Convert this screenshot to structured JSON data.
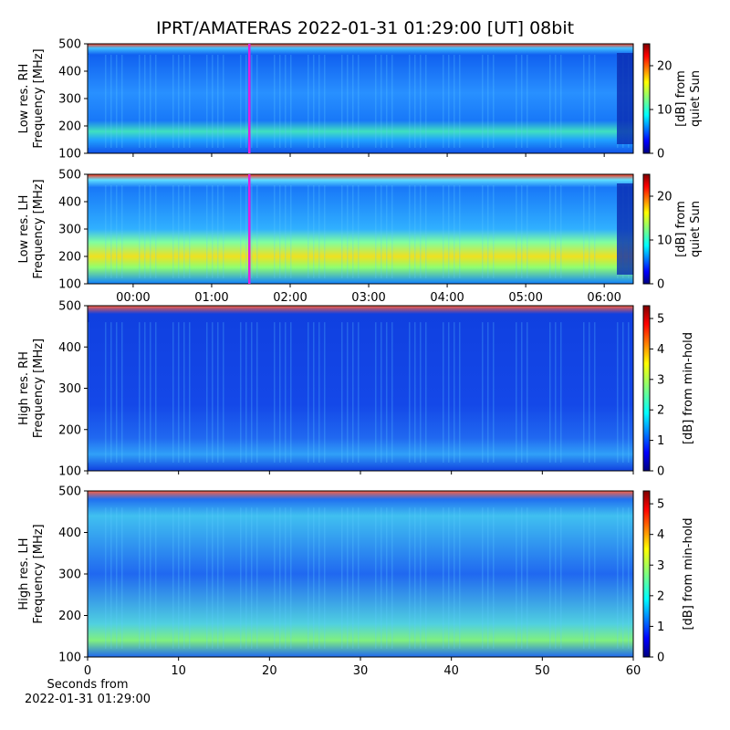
{
  "chart_data": [
    {
      "type": "heatmap",
      "title": "IPRT/AMATERAS 2022-01-31 01:29:00 [UT]   08bit",
      "ylabel": "Low res. RH\nFrequency [MHz]",
      "ylim": [
        100,
        500
      ],
      "yticks": [
        100,
        200,
        300,
        400,
        500
      ],
      "vline": 1.48,
      "vline_color": "#e020e0",
      "colorbar_label": "[dB] from\nquiet Sun",
      "clim": [
        0,
        25
      ],
      "cticks": [
        0,
        10,
        20
      ]
    },
    {
      "type": "heatmap",
      "ylabel": "Low res. LH\nFrequency [MHz]",
      "ylim": [
        100,
        500
      ],
      "yticks": [
        100,
        200,
        300,
        400,
        500
      ],
      "vline": 1.48,
      "vline_color": "#e020e0",
      "xlim": [
        -0.58,
        6.37
      ],
      "xticks": [
        {
          "value": 0,
          "label": "00:00"
        },
        {
          "value": 1,
          "label": "01:00"
        },
        {
          "value": 2,
          "label": "02:00"
        },
        {
          "value": 3,
          "label": "03:00"
        },
        {
          "value": 4,
          "label": "04:00"
        },
        {
          "value": 5,
          "label": "05:00"
        },
        {
          "value": 6,
          "label": "06:00"
        }
      ],
      "colorbar_label": "[dB] from\nquiet Sun",
      "clim": [
        0,
        25
      ],
      "cticks": [
        0,
        10,
        20
      ]
    },
    {
      "type": "heatmap",
      "ylabel": "High res. RH\nFrequency [MHz]",
      "ylim": [
        100,
        500
      ],
      "yticks": [
        100,
        200,
        300,
        400,
        500
      ],
      "colorbar_label": "[dB] from min-hold",
      "clim": [
        0,
        5.42
      ],
      "cticks": [
        0,
        1,
        2,
        3,
        4,
        5
      ]
    },
    {
      "type": "heatmap",
      "ylabel": "High res. LH\nFrequency [MHz]",
      "xlabel": "Seconds from\n2022-01-31 01:29:00",
      "ylim": [
        100,
        500
      ],
      "yticks": [
        100,
        200,
        300,
        400,
        500
      ],
      "xlim": [
        0,
        60
      ],
      "xticks": [
        0,
        10,
        20,
        30,
        40,
        50,
        60
      ],
      "colorbar_label": "[dB] from min-hold",
      "clim": [
        0,
        5.42
      ],
      "cticks": [
        0,
        1,
        2,
        3,
        4,
        5
      ]
    }
  ]
}
